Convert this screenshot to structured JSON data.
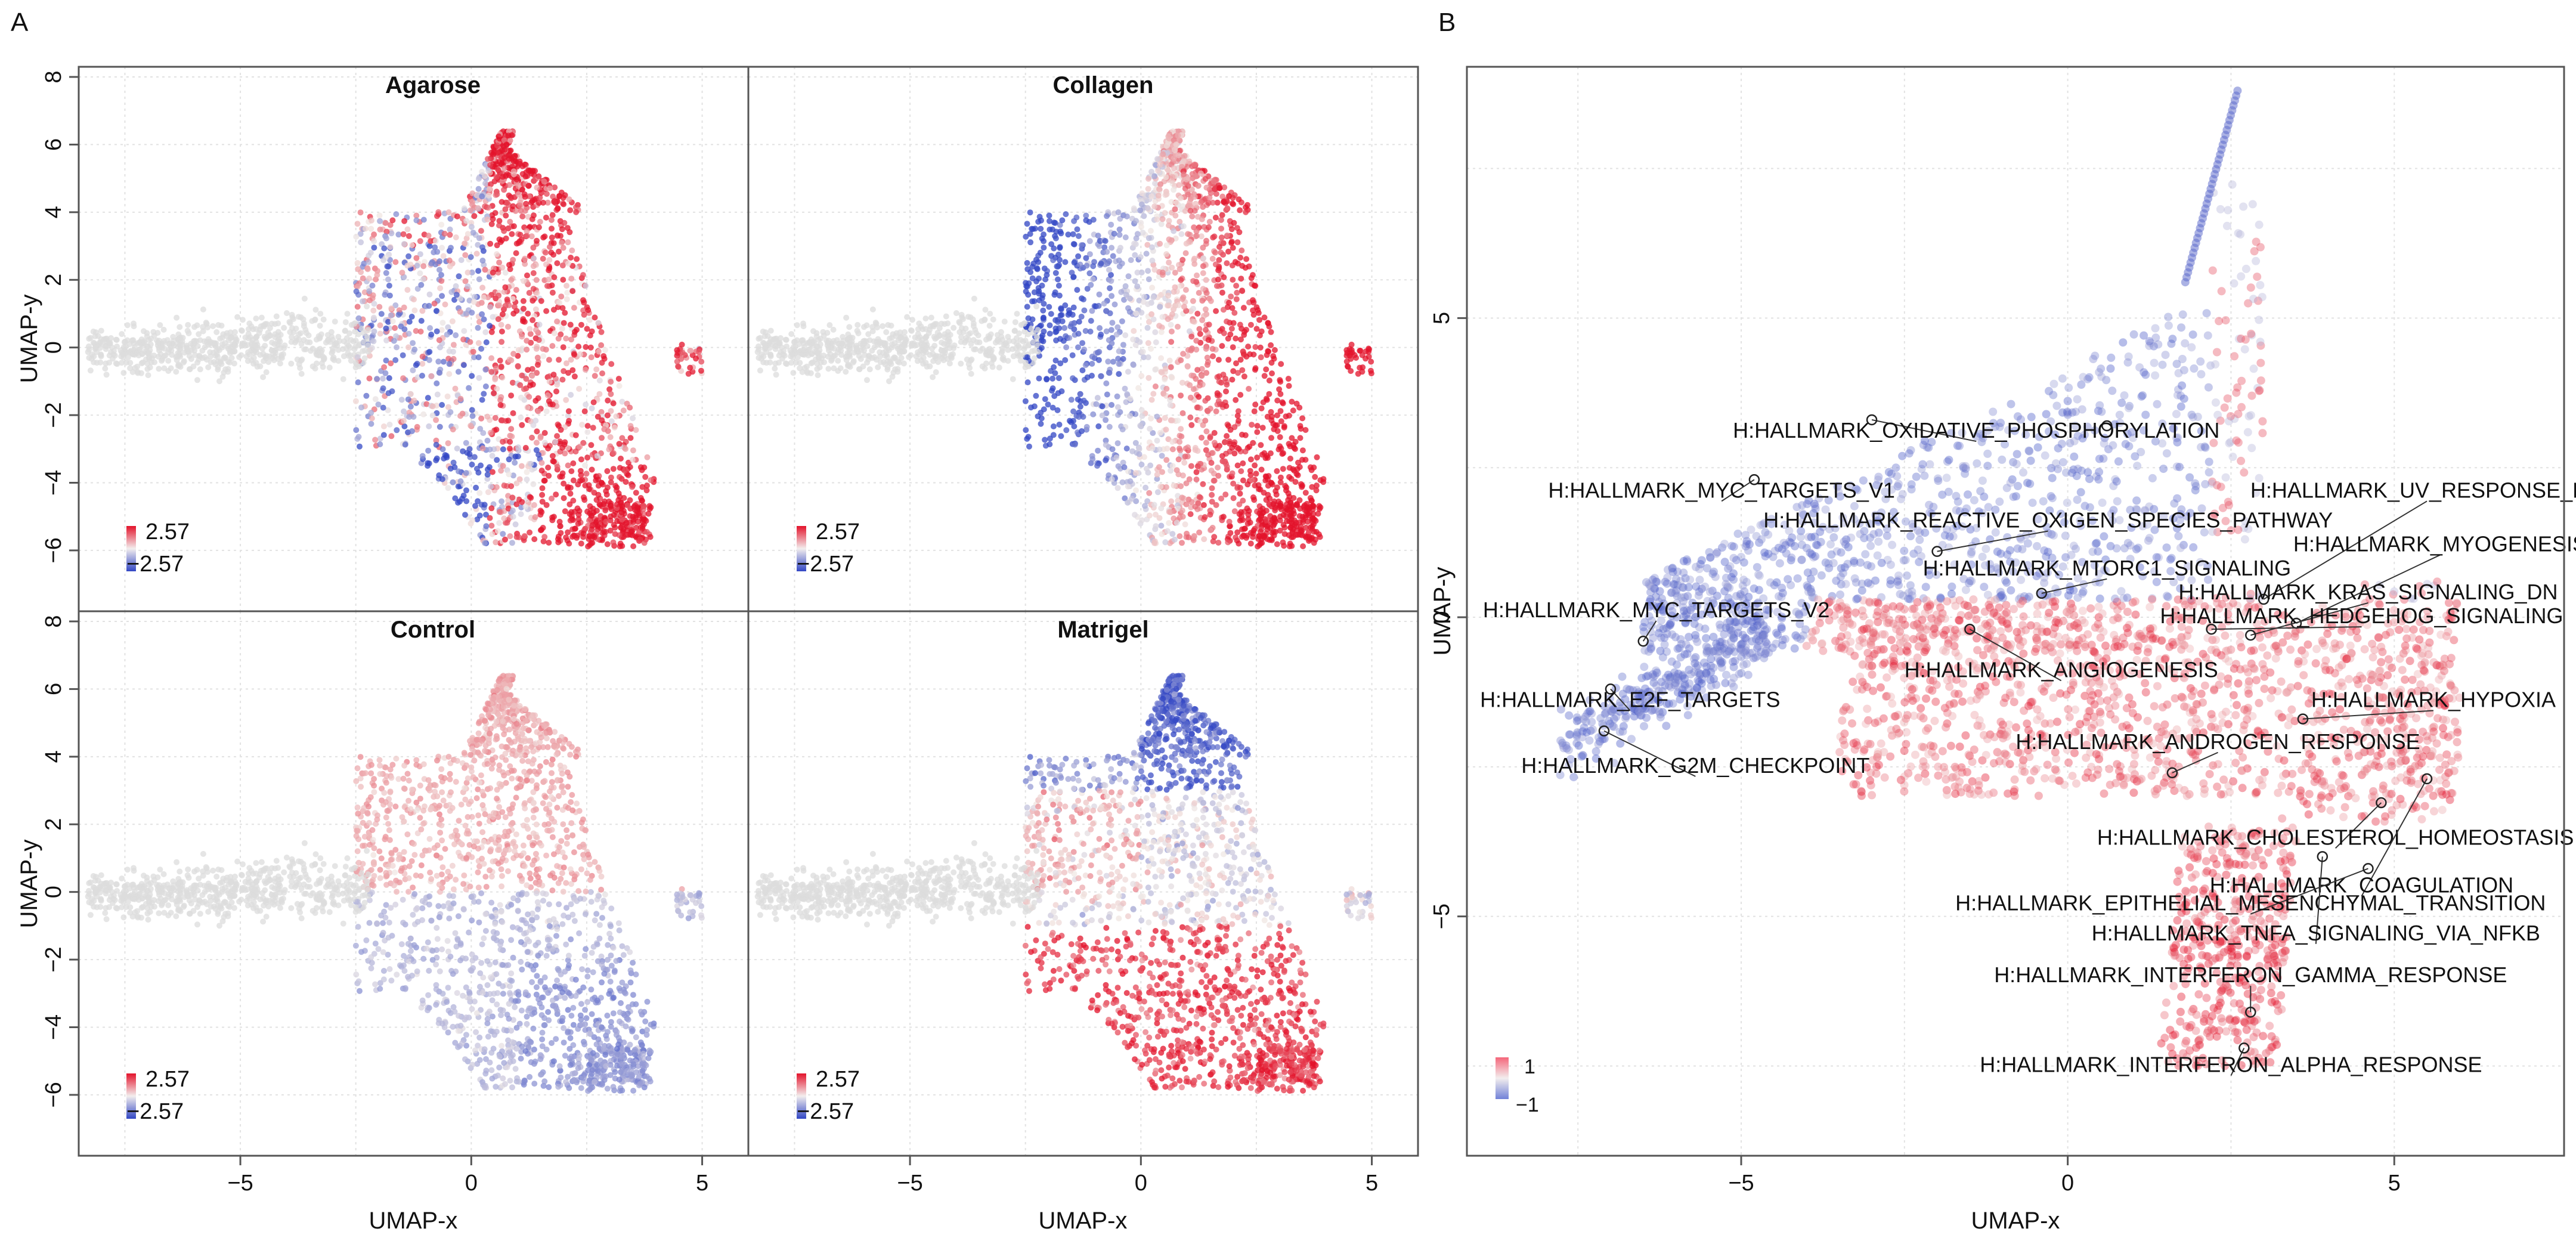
{
  "panel_labels": {
    "a": "A",
    "b": "B"
  },
  "colors": {
    "high": "#e3132b",
    "low": "#3146c4",
    "neutral": "#f0e7e3",
    "empty": "#d9d9d9",
    "grid": "#d8d8d8",
    "frame": "#555555"
  },
  "chart_data": [
    {
      "type": "scatter",
      "panel": "A",
      "subplots": [
        "Agarose",
        "Collagen",
        "Control",
        "Matrigel"
      ],
      "xlabel": "UMAP-x",
      "ylabel": "UMAP-y",
      "xlim": [
        -8.5,
        6.0
      ],
      "ylim": [
        -7.8,
        8.3
      ],
      "xticks": [
        -5,
        0,
        5
      ],
      "xtick_labels": [
        "−5",
        "0",
        "5"
      ],
      "yticks": [
        -6,
        -4,
        -2,
        0,
        2,
        4,
        6,
        8
      ],
      "ytick_labels": [
        "−6",
        "−4",
        "−2",
        "0",
        "2",
        "4",
        "6",
        "8"
      ],
      "color_scale": {
        "max_label": "2.57",
        "min_label": "−2.57",
        "max": 2.57,
        "min": -2.57
      },
      "grid": true
    },
    {
      "type": "scatter",
      "panel": "B",
      "xlabel": "UMAP-x",
      "ylabel": "UMAP-y",
      "xlim": [
        -9.2,
        7.6
      ],
      "ylim": [
        -9.0,
        9.2
      ],
      "xticks": [
        -5,
        0,
        5
      ],
      "xtick_labels": [
        "−5",
        "0",
        "5"
      ],
      "yticks": [
        -5,
        0,
        5
      ],
      "ytick_labels": [
        "−5",
        "0",
        "5"
      ],
      "color_scale": {
        "max_label": "1",
        "min_label": "−1",
        "max": 1,
        "min": -1
      },
      "grid": true,
      "annotations": [
        {
          "label": "H:HALLMARK_OXIDATIVE_PHOSPHORYLATION",
          "x": -1.4,
          "y": 3.0,
          "px": -3.0,
          "py": 3.3,
          "px2": 0.6,
          "py2": 3.2
        },
        {
          "label": "H:HALLMARK_MYC_TARGETS_V1",
          "x": -5.3,
          "y": 2.0,
          "px": -4.8,
          "py": 2.3
        },
        {
          "label": "H:HALLMARK_REACTIVE_OXIGEN_SPECIES_PATHWAY",
          "x": -0.3,
          "y": 1.5,
          "px": -2.0,
          "py": 1.1
        },
        {
          "label": "H:HALLMARK_UV_RESPONSE_DN",
          "x": 5.5,
          "y": 2.0,
          "px": 3.0,
          "py": 0.3
        },
        {
          "label": "H:HALLMARK_MYOGENESIS",
          "x": 5.7,
          "y": 1.1,
          "px": 3.5,
          "py": -0.1
        },
        {
          "label": "H:HALLMARK_MTORC1_SIGNALING",
          "x": 0.6,
          "y": 0.7,
          "px": -0.4,
          "py": 0.4
        },
        {
          "label": "H:HALLMARK_KRAS_SIGNALING_DN",
          "x": 4.6,
          "y": 0.3,
          "px": 2.8,
          "py": -0.3
        },
        {
          "label": "H:HALLMARK_MYC_TARGETS_V2",
          "x": -6.3,
          "y": 0.0,
          "px": -6.5,
          "py": -0.4
        },
        {
          "label": "H:HALLMARK_HEDGEHOG_SIGNALING",
          "x": 4.5,
          "y": -0.1,
          "px": 2.2,
          "py": -0.2
        },
        {
          "label": "H:HALLMARK_ANGIOGENESIS",
          "x": -0.1,
          "y": -1.0,
          "px": -1.5,
          "py": -0.2
        },
        {
          "label": "H:HALLMARK_E2F_TARGETS",
          "x": -6.7,
          "y": -1.5,
          "px": -7.0,
          "py": -1.2
        },
        {
          "label": "H:HALLMARK_HYPOXIA",
          "x": 5.6,
          "y": -1.5,
          "px": 3.6,
          "py": -1.7
        },
        {
          "label": "H:HALLMARK_ANDROGEN_RESPONSE",
          "x": 2.3,
          "y": -2.2,
          "px": 1.6,
          "py": -2.6
        },
        {
          "label": "H:HALLMARK_G2M_CHECKPOINT",
          "x": -5.7,
          "y": -2.6,
          "px": -7.1,
          "py": -1.9
        },
        {
          "label": "H:HALLMARK_CHOLESTEROL_HOMEOSTASIS",
          "x": 4.1,
          "y": -3.8,
          "px": 4.8,
          "py": -3.1
        },
        {
          "label": "H:HALLMARK_COAGULATION",
          "x": 4.5,
          "y": -4.6,
          "px": 5.5,
          "py": -2.7
        },
        {
          "label": "H:HALLMARK_EPITHELIAL_MESENCHYMAL_TRANSITION",
          "x": 2.8,
          "y": -4.9,
          "px": 4.6,
          "py": -4.2
        },
        {
          "label": "H:HALLMARK_TNFA_SIGNALING_VIA_NFKB",
          "x": 3.8,
          "y": -5.4,
          "px": 3.9,
          "py": -4.0
        },
        {
          "label": "H:HALLMARK_INTERFERON_GAMMA_RESPONSE",
          "x": 2.8,
          "y": -6.1,
          "px": 2.8,
          "py": -6.6
        },
        {
          "label": "H:HALLMARK_INTERFERON_ALPHA_RESPONSE",
          "x": 2.5,
          "y": -7.6,
          "px": 2.7,
          "py": -7.2
        }
      ]
    }
  ]
}
